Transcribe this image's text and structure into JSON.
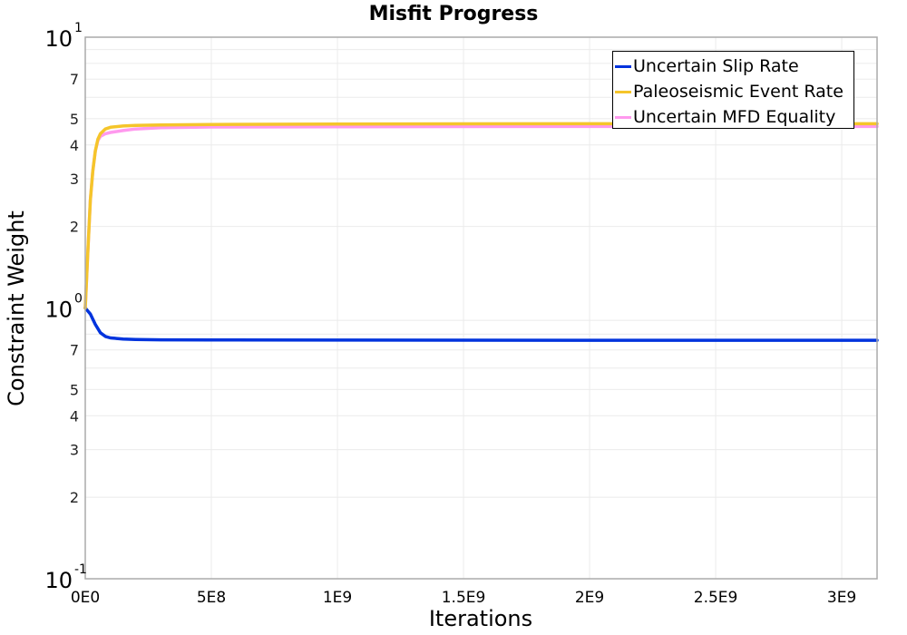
{
  "chart_data": {
    "type": "line",
    "title": "Misfit Progress",
    "xlabel": "Iterations",
    "ylabel": "Constraint Weight",
    "yscale": "log",
    "xlim": [
      0,
      3140000000
    ],
    "ylim": [
      0.1,
      10
    ],
    "grid": true,
    "legend_position": "upper-right-inside",
    "x_ticks": [
      {
        "value": 0,
        "label": "0E0"
      },
      {
        "value": 500000000,
        "label": "5E8"
      },
      {
        "value": 1000000000,
        "label": "1E9"
      },
      {
        "value": 1500000000,
        "label": "1.5E9"
      },
      {
        "value": 2000000000,
        "label": "2E9"
      },
      {
        "value": 2500000000,
        "label": "2.5E9"
      },
      {
        "value": 3000000000,
        "label": "3E9"
      }
    ],
    "y_major_ticks": [
      {
        "value": 10,
        "base": "10",
        "exp": "1"
      },
      {
        "value": 1,
        "base": "10",
        "exp": "0"
      },
      {
        "value": 0.1,
        "base": "10",
        "exp": "-1"
      }
    ],
    "y_minor_ticks": [
      {
        "value": 7,
        "label": "7"
      },
      {
        "value": 5,
        "label": "5"
      },
      {
        "value": 4,
        "label": "4"
      },
      {
        "value": 3,
        "label": "3"
      },
      {
        "value": 2,
        "label": "2"
      },
      {
        "value": 0.7,
        "label": "7"
      },
      {
        "value": 0.5,
        "label": "5"
      },
      {
        "value": 0.4,
        "label": "4"
      },
      {
        "value": 0.3,
        "label": "3"
      },
      {
        "value": 0.2,
        "label": "2"
      }
    ],
    "y_minor_gridlines": [
      9,
      8,
      7,
      6,
      5,
      4,
      3,
      2,
      0.9,
      0.8,
      0.7,
      0.6,
      0.5,
      0.4,
      0.3,
      0.2
    ],
    "series": [
      {
        "name": "Uncertain Slip Rate",
        "color": "#0033dd",
        "x": [
          0,
          20000000,
          40000000,
          60000000,
          80000000,
          100000000,
          150000000,
          200000000,
          300000000,
          500000000,
          1000000000,
          2000000000,
          3140000000
        ],
        "y": [
          1.0,
          0.95,
          0.87,
          0.81,
          0.785,
          0.775,
          0.768,
          0.765,
          0.763,
          0.762,
          0.761,
          0.76,
          0.76
        ]
      },
      {
        "name": "Paleoseismic Event Rate",
        "color": "#f5c52a",
        "x": [
          0,
          10000000,
          20000000,
          30000000,
          40000000,
          50000000,
          60000000,
          80000000,
          100000000,
          150000000,
          200000000,
          300000000,
          500000000,
          1000000000,
          2000000000,
          3140000000
        ],
        "y": [
          1.0,
          1.6,
          2.5,
          3.2,
          3.8,
          4.2,
          4.4,
          4.58,
          4.65,
          4.7,
          4.72,
          4.74,
          4.76,
          4.78,
          4.79,
          4.79
        ]
      },
      {
        "name": "Uncertain MFD Equality",
        "color": "#ff99ee",
        "x": [
          0,
          10000000,
          20000000,
          30000000,
          40000000,
          50000000,
          60000000,
          80000000,
          100000000,
          150000000,
          200000000,
          300000000,
          500000000,
          1000000000,
          2000000000,
          3140000000
        ],
        "y": [
          1.0,
          1.6,
          2.5,
          3.2,
          3.8,
          4.15,
          4.3,
          4.4,
          4.45,
          4.52,
          4.58,
          4.63,
          4.66,
          4.67,
          4.68,
          4.68
        ]
      }
    ]
  },
  "legend": {
    "items": [
      {
        "label": "Uncertain Slip Rate",
        "color": "#0033dd"
      },
      {
        "label": "Paleoseismic Event Rate",
        "color": "#f5c52a"
      },
      {
        "label": "Uncertain MFD Equality",
        "color": "#ff99ee"
      }
    ]
  }
}
